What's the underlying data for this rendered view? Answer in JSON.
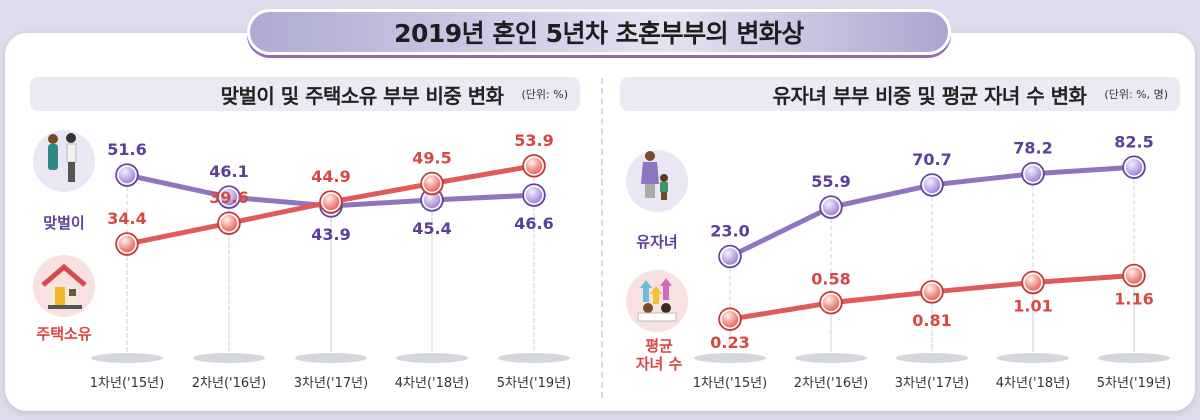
{
  "title": "2019년 혼인 5년차 초혼부부의 변화상",
  "left_panel": {
    "heading": "맞벌이 및 주택소유 부부 비중 변화",
    "unit": "(단위: %)",
    "labels": {
      "dual_income": "맞벌이",
      "home_owner": "주택소유"
    }
  },
  "right_panel": {
    "heading": "유자녀 부부 비중 및 평균 자녀 수 변화",
    "unit": "(단위: %, 명)",
    "labels": {
      "with_children": "유자녀",
      "avg_children_1": "평균",
      "avg_children_2": "자녀 수"
    }
  },
  "icons": [
    "working-couple-icon",
    "house-icon",
    "mother-child-icon",
    "children-arrows-icon"
  ],
  "colors": {
    "purple": "#8f74c0",
    "red": "#e05a5a",
    "purple_text": "#5b3f99",
    "red_text": "#d84646"
  },
  "chart_data": [
    {
      "type": "line",
      "title": "맞벌이 및 주택소유 부부 비중 변화",
      "unit": "%",
      "categories": [
        "1차년('15년)",
        "2차년('16년)",
        "3차년('17년)",
        "4차년('18년)",
        "5차년('19년)"
      ],
      "series": [
        {
          "name": "맞벌이",
          "values": [
            51.6,
            46.1,
            43.9,
            45.4,
            46.6
          ],
          "color": "#8f74c0"
        },
        {
          "name": "주택소유",
          "values": [
            34.4,
            39.6,
            44.9,
            49.5,
            53.9
          ],
          "color": "#e05a5a"
        }
      ],
      "grid": false
    },
    {
      "type": "line",
      "title": "유자녀 부부 비중 및 평균 자녀 수 변화",
      "unit": "%, 명",
      "categories": [
        "1차년('15년)",
        "2차년('16년)",
        "3차년('17년)",
        "4차년('18년)",
        "5차년('19년)"
      ],
      "series": [
        {
          "name": "유자녀",
          "values": [
            23.0,
            55.9,
            70.7,
            78.2,
            82.5
          ],
          "color": "#8f74c0",
          "unit": "%"
        },
        {
          "name": "평균 자녀 수",
          "values": [
            0.23,
            0.58,
            0.81,
            1.01,
            1.16
          ],
          "color": "#e05a5a",
          "unit": "명"
        }
      ],
      "grid": false
    }
  ]
}
